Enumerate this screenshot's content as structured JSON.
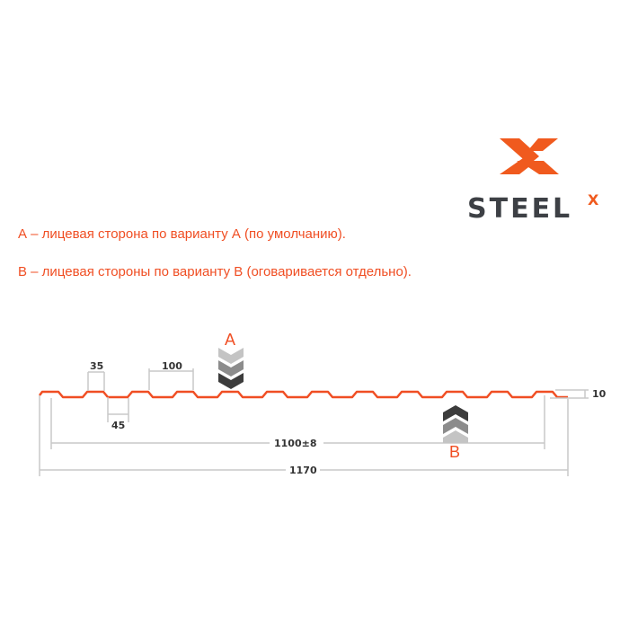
{
  "logo": {
    "text": "STEEL",
    "superscript": "X",
    "colors": {
      "orange": "#f05a1e",
      "dark": "#3d4045"
    }
  },
  "notes": [
    "А – лицевая сторона по варианту А (по умолчанию).",
    "В – лицевая стороны по варианту В (оговаривается отдельно)."
  ],
  "diagram": {
    "profile_color": "#f04e23",
    "dimensions": {
      "top_width": "35",
      "pitch": "100",
      "bottom_width": "45",
      "useful_width": "1100±8",
      "total_width": "1170",
      "height": "10"
    },
    "side_a": "A",
    "side_b": "B"
  }
}
